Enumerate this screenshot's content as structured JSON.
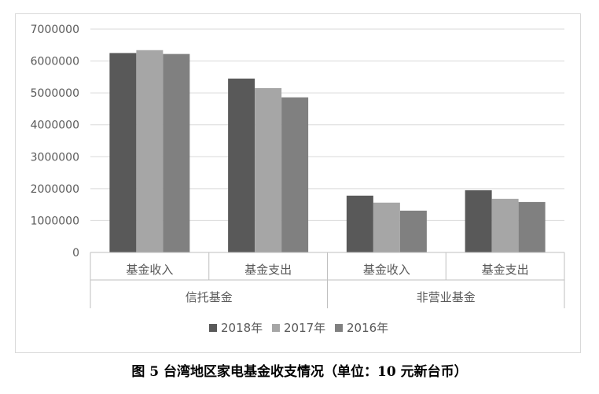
{
  "chart_data": {
    "type": "bar",
    "caption": "图 5 台湾地区家电基金收支情况（单位：10 元新台币）",
    "groups": [
      {
        "label": "信托基金",
        "categories": [
          "基金收入",
          "基金支出"
        ]
      },
      {
        "label": "非营业基金",
        "categories": [
          "基金收入",
          "基金支出"
        ]
      }
    ],
    "categories": [
      "基金收入",
      "基金支出",
      "基金收入",
      "基金支出"
    ],
    "series": [
      {
        "name": "2018年",
        "color": "#595959",
        "values": [
          6250000,
          5450000,
          1780000,
          1950000
        ]
      },
      {
        "name": "2017年",
        "color": "#a6a6a6",
        "values": [
          6340000,
          5150000,
          1560000,
          1680000
        ]
      },
      {
        "name": "2016年",
        "color": "#808080",
        "values": [
          6220000,
          4860000,
          1310000,
          1580000
        ]
      }
    ],
    "yticks": [
      "7000000",
      "6000000",
      "5000000",
      "4000000",
      "3000000",
      "2000000",
      "1000000",
      "0"
    ],
    "ylim": [
      0,
      7000000
    ],
    "grid": true,
    "legend_position": "bottom"
  }
}
